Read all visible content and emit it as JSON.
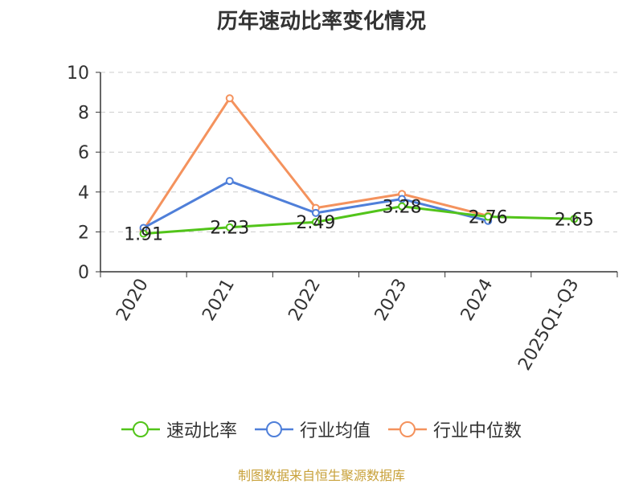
{
  "chart_data": {
    "type": "line",
    "title": "历年速动比率变化情况",
    "categories": [
      "2020",
      "2021",
      "2022",
      "2023",
      "2024",
      "2025Q1-Q3"
    ],
    "ylim": [
      0,
      10
    ],
    "yticks": [
      0,
      2,
      4,
      6,
      8,
      10
    ],
    "grid": true,
    "legend_position": "bottom",
    "series": [
      {
        "name": "速动比率",
        "color": "#52c41a",
        "values": [
          1.91,
          2.23,
          2.49,
          3.28,
          2.76,
          2.65
        ],
        "labels": [
          "1.91",
          "2.23",
          "2.49",
          "3.28",
          "2.76",
          "2.65"
        ]
      },
      {
        "name": "行业均值",
        "color": "#4f7fd9",
        "values": [
          2.2,
          4.55,
          2.95,
          3.65,
          2.55,
          null
        ]
      },
      {
        "name": "行业中位数",
        "color": "#f4925d",
        "values": [
          2.1,
          8.7,
          3.2,
          3.9,
          2.8,
          null
        ]
      }
    ]
  },
  "source": "制图数据来自恒生聚源数据库"
}
